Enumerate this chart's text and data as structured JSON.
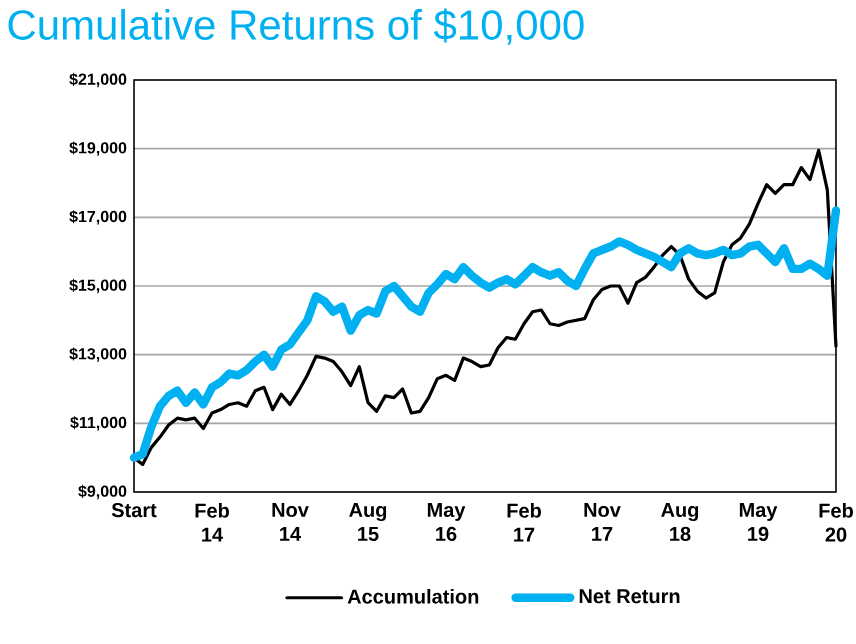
{
  "chart_data": {
    "type": "line",
    "title": "Cumulative Returns of $10,000",
    "categories": [
      "Start",
      null,
      null,
      null,
      null,
      null,
      null,
      null,
      null,
      "Feb 14",
      null,
      null,
      null,
      null,
      null,
      null,
      null,
      null,
      "Nov 14",
      null,
      null,
      null,
      null,
      null,
      null,
      null,
      null,
      "Aug 15",
      null,
      null,
      null,
      null,
      null,
      null,
      null,
      null,
      "May 16",
      null,
      null,
      null,
      null,
      null,
      null,
      null,
      null,
      "Feb 17",
      null,
      null,
      null,
      null,
      null,
      null,
      null,
      null,
      "Nov 17",
      null,
      null,
      null,
      null,
      null,
      null,
      null,
      null,
      "Aug 18",
      null,
      null,
      null,
      null,
      null,
      null,
      null,
      null,
      "May 19",
      null,
      null,
      null,
      null,
      null,
      null,
      null,
      null,
      "Feb 20"
    ],
    "series": [
      {
        "name": "Accumulation",
        "color": "#000000",
        "values": [
          10000,
          9800,
          10300,
          10600,
          10950,
          11150,
          11100,
          11150,
          10850,
          11300,
          11400,
          11550,
          11600,
          11500,
          11950,
          12050,
          11400,
          11850,
          11550,
          11950,
          12400,
          12950,
          12900,
          12800,
          12500,
          12100,
          12650,
          11600,
          11350,
          11800,
          11750,
          12000,
          11300,
          11350,
          11750,
          12300,
          12400,
          12250,
          12900,
          12800,
          12650,
          12700,
          13200,
          13500,
          13450,
          13900,
          14250,
          14300,
          13900,
          13850,
          13950,
          14000,
          14050,
          14600,
          14900,
          15000,
          15000,
          14500,
          15100,
          15250,
          15550,
          15900,
          16150,
          15900,
          15200,
          14850,
          14650,
          14800,
          15700,
          16200,
          16400,
          16800,
          17400,
          17950,
          17700,
          17950,
          17950,
          18450,
          18100,
          18950,
          17800,
          13250
        ]
      },
      {
        "name": "Net Return",
        "color": "#00b0f0",
        "values": [
          10000,
          10100,
          10900,
          11500,
          11800,
          11950,
          11600,
          11900,
          11550,
          12050,
          12200,
          12450,
          12400,
          12550,
          12800,
          13000,
          12650,
          13150,
          13300,
          13650,
          14000,
          14700,
          14550,
          14250,
          14400,
          13700,
          14150,
          14300,
          14200,
          14850,
          15000,
          14700,
          14400,
          14250,
          14800,
          15050,
          15350,
          15200,
          15550,
          15300,
          15100,
          14950,
          15100,
          15200,
          15050,
          15300,
          15550,
          15400,
          15300,
          15400,
          15150,
          15000,
          15500,
          15950,
          16050,
          16150,
          16300,
          16200,
          16050,
          15950,
          15850,
          15700,
          15550,
          15950,
          16100,
          15950,
          15900,
          15950,
          16050,
          15900,
          15950,
          16150,
          16200,
          15950,
          15700,
          16100,
          15500,
          15500,
          15650,
          15500,
          15300,
          17200
        ]
      }
    ],
    "ylim": [
      9000,
      21000
    ],
    "yticks": [
      {
        "value": 9000,
        "label": "$9,000"
      },
      {
        "value": 11000,
        "label": "$11,000"
      },
      {
        "value": 13000,
        "label": "$13,000"
      },
      {
        "value": 15000,
        "label": "$15,000"
      },
      {
        "value": 17000,
        "label": "$17,000"
      },
      {
        "value": 19000,
        "label": "$19,000"
      },
      {
        "value": 21000,
        "label": "$21,000"
      }
    ],
    "grid": "y",
    "legend": "bottom",
    "marker": "none",
    "line_style": "solid"
  }
}
